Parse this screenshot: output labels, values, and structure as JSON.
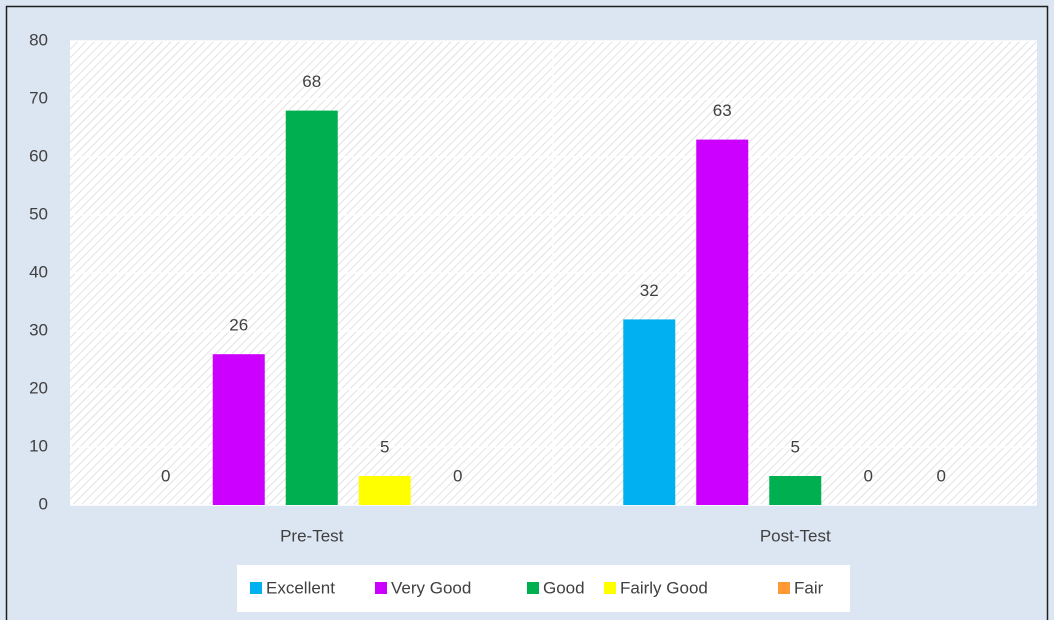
{
  "chart_data": {
    "type": "bar",
    "categories": [
      "Pre-Test",
      "Post-Test"
    ],
    "series": [
      {
        "name": "Excellent",
        "color": "#00b0f0",
        "values": [
          0,
          32
        ]
      },
      {
        "name": "Very Good",
        "color": "#cc00ff",
        "values": [
          26,
          63
        ]
      },
      {
        "name": "Good",
        "color": "#00b050",
        "values": [
          68,
          5
        ]
      },
      {
        "name": "Fairly Good",
        "color": "#ffff00",
        "values": [
          5,
          0
        ]
      },
      {
        "name": "Fair",
        "color": "#ff9933",
        "values": [
          0,
          0
        ]
      }
    ],
    "ylim": [
      0,
      80
    ],
    "yticks": [
      0,
      10,
      20,
      30,
      40,
      50,
      60,
      70,
      80
    ],
    "grid": true,
    "legend": "bottom"
  }
}
